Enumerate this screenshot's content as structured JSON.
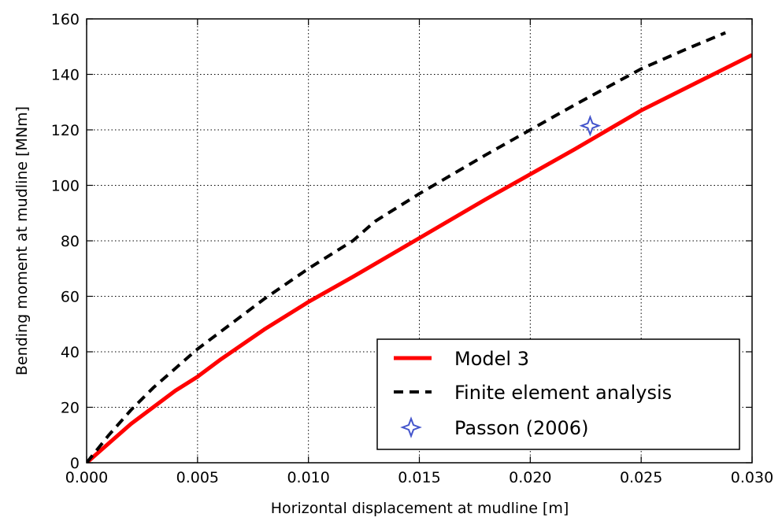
{
  "chart_data": {
    "type": "line",
    "title": "",
    "xlabel": "Horizontal displacement at mudline [m]",
    "ylabel": "Bending moment at mudline [MNm]",
    "xlim": [
      0.0,
      0.03
    ],
    "ylim": [
      0,
      160
    ],
    "x_ticks": [
      "0.000",
      "0.005",
      "0.010",
      "0.015",
      "0.020",
      "0.025",
      "0.030"
    ],
    "y_ticks": [
      "0",
      "20",
      "40",
      "60",
      "80",
      "100",
      "120",
      "140",
      "160"
    ],
    "grid": true,
    "legend_position": "bottom-right",
    "series": [
      {
        "name": "Model 3",
        "style": "solid",
        "color": "#ff0000",
        "x": [
          0.0,
          0.001,
          0.002,
          0.003,
          0.004,
          0.005,
          0.006,
          0.008,
          0.01,
          0.012,
          0.015,
          0.018,
          0.02,
          0.022,
          0.025,
          0.028,
          0.03
        ],
        "y": [
          0,
          7,
          14,
          20,
          26,
          31,
          37,
          48,
          58,
          67,
          81,
          95,
          104,
          113,
          127,
          139,
          147
        ]
      },
      {
        "name": "Finite element analysis",
        "style": "dashed",
        "color": "#000000",
        "x": [
          0.0,
          0.001,
          0.002,
          0.003,
          0.004,
          0.005,
          0.006,
          0.008,
          0.01,
          0.012,
          0.013,
          0.015,
          0.018,
          0.02,
          0.022,
          0.025,
          0.027,
          0.0288
        ],
        "y": [
          0,
          10,
          19,
          27,
          34,
          41,
          47,
          59,
          70,
          80,
          87,
          97,
          111,
          120,
          129,
          142,
          149,
          155
        ]
      },
      {
        "name": "Passon (2006)",
        "style": "marker",
        "marker": "star4",
        "color": "#4455cc",
        "x": [
          0.0227
        ],
        "y": [
          121.5
        ]
      }
    ]
  }
}
